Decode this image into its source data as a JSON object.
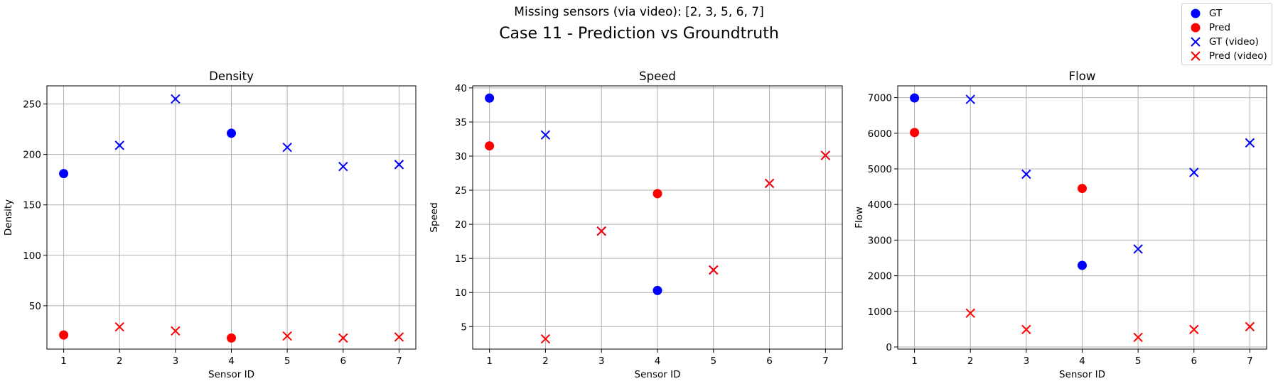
{
  "suptitle": "Missing sensors (via video): [2, 3, 5, 6, 7]",
  "title": "Case 11 - Prediction vs Groundtruth",
  "legend": [
    {
      "label": "GT",
      "marker": "circle",
      "color": "#0000ff"
    },
    {
      "label": "Pred",
      "marker": "circle",
      "color": "#ff0000"
    },
    {
      "label": "GT (video)",
      "marker": "x",
      "color": "#0000ff"
    },
    {
      "label": "Pred (video)",
      "marker": "x",
      "color": "#ff0000"
    }
  ],
  "chart_data": [
    {
      "type": "scatter",
      "title": "Density",
      "xlabel": "Sensor ID",
      "ylabel": "Density",
      "xlim": [
        0.7,
        7.3
      ],
      "ylim": [
        7,
        268
      ],
      "xticks": [
        1,
        2,
        3,
        4,
        5,
        6,
        7
      ],
      "yticks": [
        50,
        100,
        150,
        200,
        250
      ],
      "grid": true,
      "series": [
        {
          "name": "GT",
          "marker": "circle",
          "color": "#0000ff",
          "points": [
            [
              1,
              181
            ],
            [
              4,
              221
            ]
          ]
        },
        {
          "name": "Pred",
          "marker": "circle",
          "color": "#ff0000",
          "points": [
            [
              1,
              21
            ],
            [
              4,
              18
            ]
          ]
        },
        {
          "name": "GT (video)",
          "marker": "x",
          "color": "#0000ff",
          "points": [
            [
              2,
              209
            ],
            [
              3,
              255
            ],
            [
              5,
              207
            ],
            [
              6,
              188
            ],
            [
              7,
              190
            ]
          ]
        },
        {
          "name": "Pred (video)",
          "marker": "x",
          "color": "#ff0000",
          "points": [
            [
              2,
              29
            ],
            [
              3,
              25
            ],
            [
              5,
              20
            ],
            [
              6,
              18
            ],
            [
              7,
              19
            ]
          ]
        }
      ]
    },
    {
      "type": "scatter",
      "title": "Speed",
      "xlabel": "Sensor ID",
      "ylabel": "Speed",
      "xlim": [
        0.7,
        7.3
      ],
      "ylim": [
        1.7,
        40.3
      ],
      "xticks": [
        1,
        2,
        3,
        4,
        5,
        6,
        7
      ],
      "yticks": [
        5,
        10,
        15,
        20,
        25,
        30,
        35,
        40
      ],
      "grid": true,
      "series": [
        {
          "name": "GT",
          "marker": "circle",
          "color": "#0000ff",
          "points": [
            [
              1,
              38.5
            ],
            [
              4,
              10.3
            ]
          ]
        },
        {
          "name": "Pred",
          "marker": "circle",
          "color": "#ff0000",
          "points": [
            [
              1,
              31.5
            ],
            [
              4,
              24.5
            ]
          ]
        },
        {
          "name": "GT (video)",
          "marker": "x",
          "color": "#0000ff",
          "points": [
            [
              2,
              33.1
            ],
            [
              3,
              19.0
            ],
            [
              5,
              13.3
            ],
            [
              6,
              26.0
            ],
            [
              7,
              30.1
            ]
          ]
        },
        {
          "name": "Pred (video)",
          "marker": "x",
          "color": "#ff0000",
          "points": [
            [
              2,
              3.2
            ],
            [
              3,
              19.0
            ],
            [
              5,
              13.3
            ],
            [
              6,
              26.0
            ],
            [
              7,
              30.1
            ]
          ]
        }
      ]
    },
    {
      "type": "scatter",
      "title": "Flow",
      "xlabel": "Sensor ID",
      "ylabel": "Flow",
      "xlim": [
        0.7,
        7.3
      ],
      "ylim": [
        -60,
        7330
      ],
      "xticks": [
        1,
        2,
        3,
        4,
        5,
        6,
        7
      ],
      "yticks": [
        0,
        1000,
        2000,
        3000,
        4000,
        5000,
        6000,
        7000
      ],
      "grid": true,
      "series": [
        {
          "name": "GT",
          "marker": "circle",
          "color": "#0000ff",
          "points": [
            [
              1,
              6990
            ],
            [
              4,
              2290
            ]
          ]
        },
        {
          "name": "Pred",
          "marker": "circle",
          "color": "#ff0000",
          "points": [
            [
              1,
              6020
            ],
            [
              4,
              4450
            ]
          ]
        },
        {
          "name": "GT (video)",
          "marker": "x",
          "color": "#0000ff",
          "points": [
            [
              2,
              6950
            ],
            [
              3,
              4850
            ],
            [
              5,
              2750
            ],
            [
              6,
              4900
            ],
            [
              7,
              5730
            ]
          ]
        },
        {
          "name": "Pred (video)",
          "marker": "x",
          "color": "#ff0000",
          "points": [
            [
              2,
              950
            ],
            [
              3,
              490
            ],
            [
              5,
              270
            ],
            [
              6,
              490
            ],
            [
              7,
              570
            ]
          ]
        }
      ]
    }
  ]
}
